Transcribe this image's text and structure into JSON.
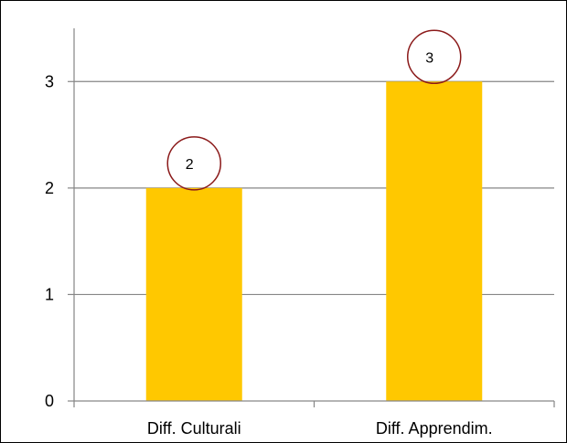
{
  "chart_data": {
    "type": "bar",
    "title": "",
    "xlabel": "",
    "ylabel": "",
    "categories": [
      "Diff. Culturali",
      "Diff. Apprendim."
    ],
    "values": [
      2,
      3
    ],
    "data_labels": [
      "2",
      "3"
    ],
    "y_ticks": [
      0,
      1,
      2,
      3
    ],
    "ylim": [
      0,
      3.5
    ],
    "grid": true,
    "legend": "none",
    "colors": {
      "bar": "#FFC800",
      "gridline": "#868686",
      "axis": "#868686",
      "label_circle": "#8B1A1A",
      "text": "#000000"
    }
  }
}
